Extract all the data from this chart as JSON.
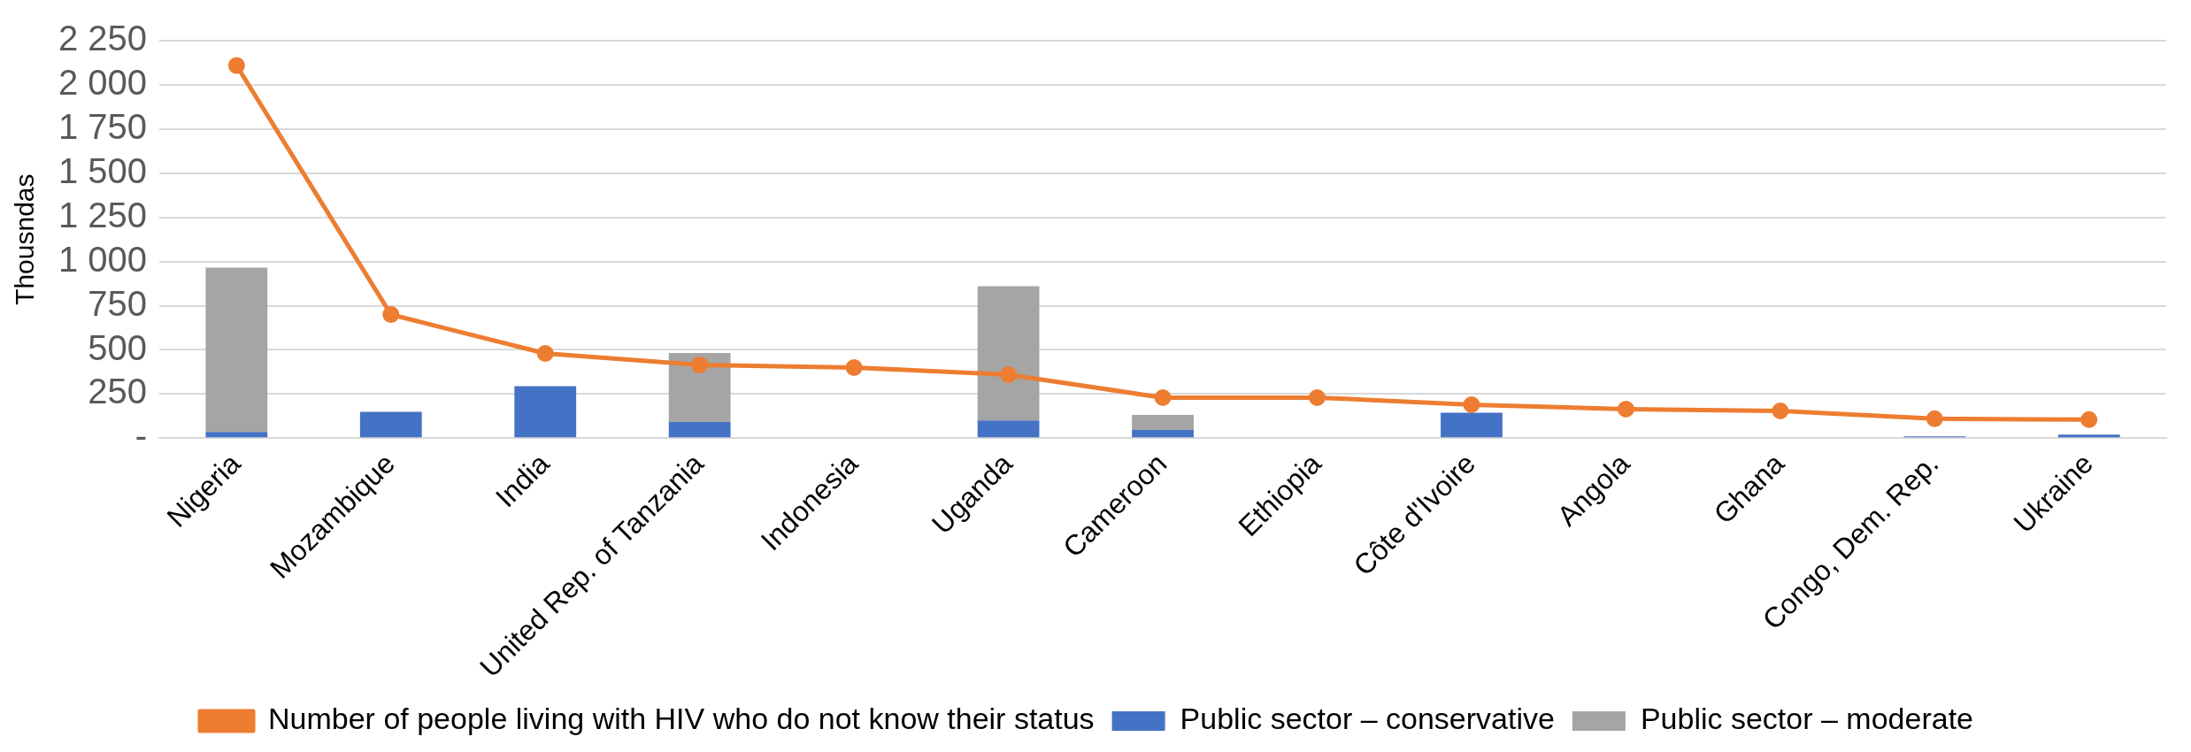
{
  "chart_data": {
    "type": "bar",
    "stacked": true,
    "ylabel": "Thousndas",
    "categories": [
      "Nigeria",
      "Mozambique",
      "India",
      "United Rep. of Tanzania",
      "Indonesia",
      "Uganda",
      "Cameroon",
      "Ethiopia",
      "Côte d'Ivoire",
      "Angola",
      "Ghana",
      "Congo, Dem. Rep.",
      "Ukraine"
    ],
    "series": [
      {
        "name": "Public sector – conservative",
        "color": "#4472c4",
        "values": [
          35,
          150,
          295,
          92,
          5,
          100,
          47,
          null,
          145,
          null,
          null,
          10,
          20
        ]
      },
      {
        "name": "Public sector – moderate",
        "color": "#a5a5a5",
        "values": [
          930,
          null,
          null,
          390,
          null,
          760,
          85,
          null,
          null,
          null,
          null,
          null,
          null
        ]
      },
      {
        "name": "Number of people living with HIV who do not know their status",
        "type": "line",
        "color": "#ed7d31",
        "marker": "circle",
        "values": [
          2110,
          700,
          480,
          415,
          400,
          360,
          230,
          230,
          190,
          165,
          155,
          110,
          105
        ]
      }
    ],
    "ylim": [
      0,
      2250
    ],
    "yticks": [
      {
        "value": 0,
        "label": "-"
      },
      {
        "value": 250,
        "label": "250"
      },
      {
        "value": 500,
        "label": "500"
      },
      {
        "value": 750,
        "label": "750"
      },
      {
        "value": 1000,
        "label": "1 000"
      },
      {
        "value": 1250,
        "label": "1 250"
      },
      {
        "value": 1500,
        "label": "1 500"
      },
      {
        "value": 1750,
        "label": "1 750"
      },
      {
        "value": 2000,
        "label": "2 000"
      },
      {
        "value": 2250,
        "label": "2 250"
      }
    ],
    "grid": "y",
    "legend": "bottom"
  }
}
